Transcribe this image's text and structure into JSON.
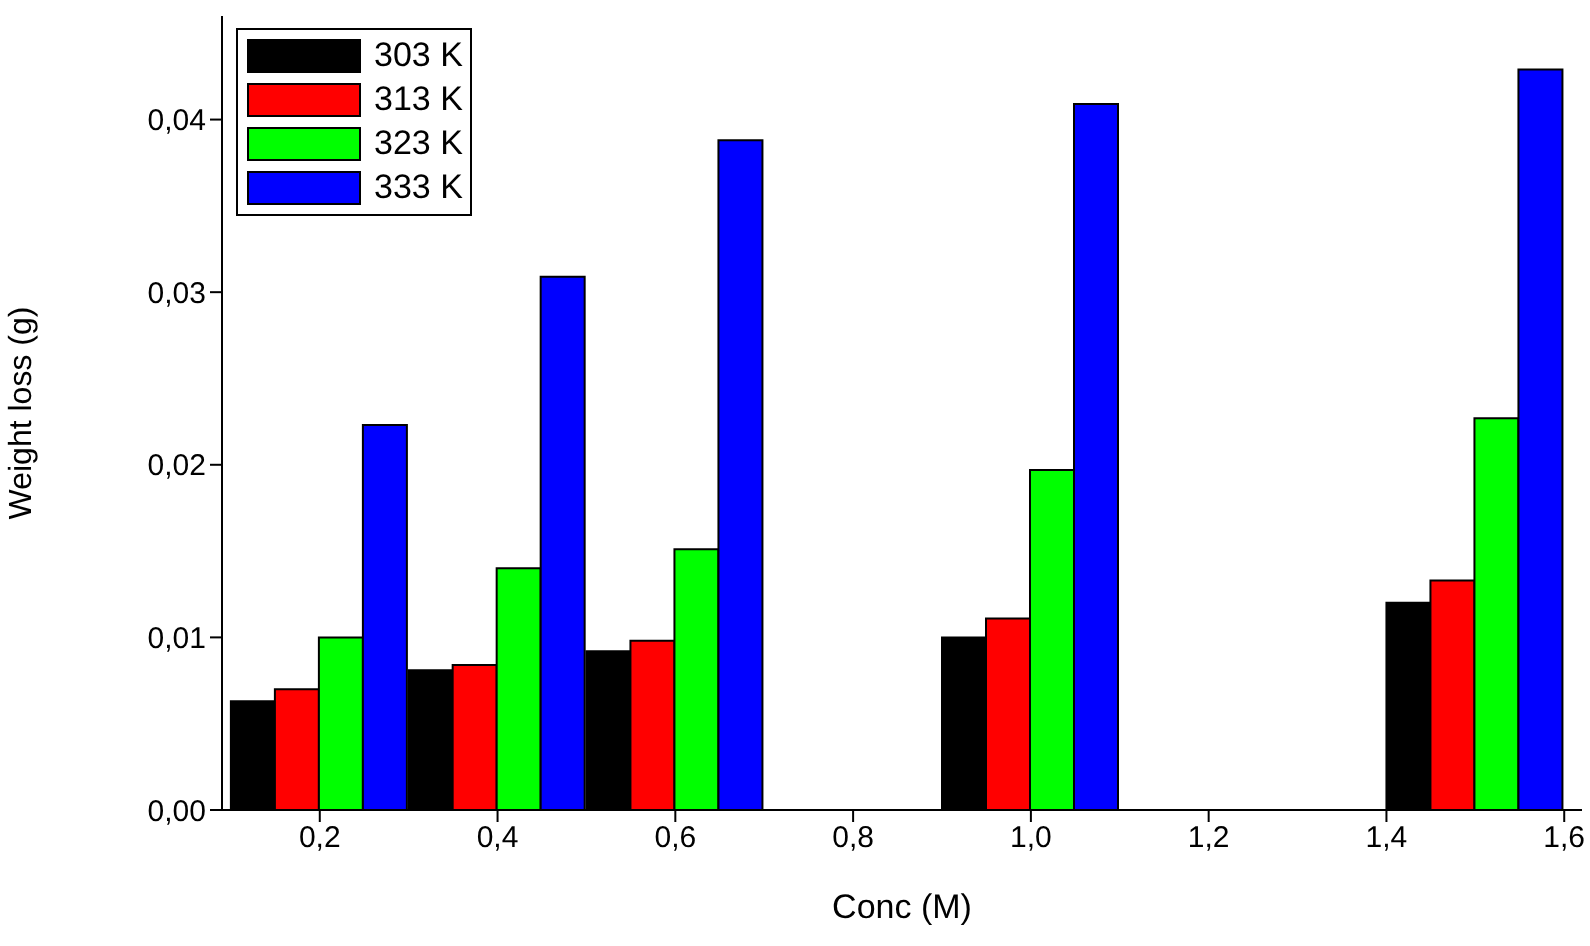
{
  "chart_data": {
    "type": "bar",
    "xlabel": "Conc (M)",
    "ylabel": "Weight loss (g)",
    "x": [
      0.2,
      0.4,
      0.6,
      1.0,
      1.5
    ],
    "series": [
      {
        "name": "303 K",
        "color": "#000000",
        "values": [
          0.0063,
          0.0081,
          0.0092,
          0.01,
          0.012
        ]
      },
      {
        "name": "313 K",
        "color": "#ff0000",
        "values": [
          0.007,
          0.0084,
          0.0098,
          0.0111,
          0.0133
        ]
      },
      {
        "name": "323 K",
        "color": "#00ff00",
        "values": [
          0.01,
          0.014,
          0.0151,
          0.0197,
          0.0227
        ]
      },
      {
        "name": "333 K",
        "color": "#0000ff",
        "values": [
          0.0223,
          0.0309,
          0.0388,
          0.0409,
          0.0429
        ]
      }
    ],
    "xlim": [
      0.09,
      1.62
    ],
    "xticks": [
      {
        "value": 0.2,
        "label": "0,2"
      },
      {
        "value": 0.4,
        "label": "0,4"
      },
      {
        "value": 0.6,
        "label": "0,6"
      },
      {
        "value": 0.8,
        "label": "0,8"
      },
      {
        "value": 1.0,
        "label": "1,0"
      },
      {
        "value": 1.2,
        "label": "1,2"
      },
      {
        "value": 1.4,
        "label": "1,4"
      },
      {
        "value": 1.6,
        "label": "1,6"
      }
    ],
    "ylim": [
      0,
      0.046
    ],
    "yticks": [
      {
        "value": 0,
        "label": "0,00"
      },
      {
        "value": 0.01,
        "label": "0,01"
      },
      {
        "value": 0.02,
        "label": "0,02"
      },
      {
        "value": 0.03,
        "label": "0,03"
      },
      {
        "value": 0.04,
        "label": "0,04"
      }
    ],
    "grid": false,
    "legend": "top left"
  }
}
